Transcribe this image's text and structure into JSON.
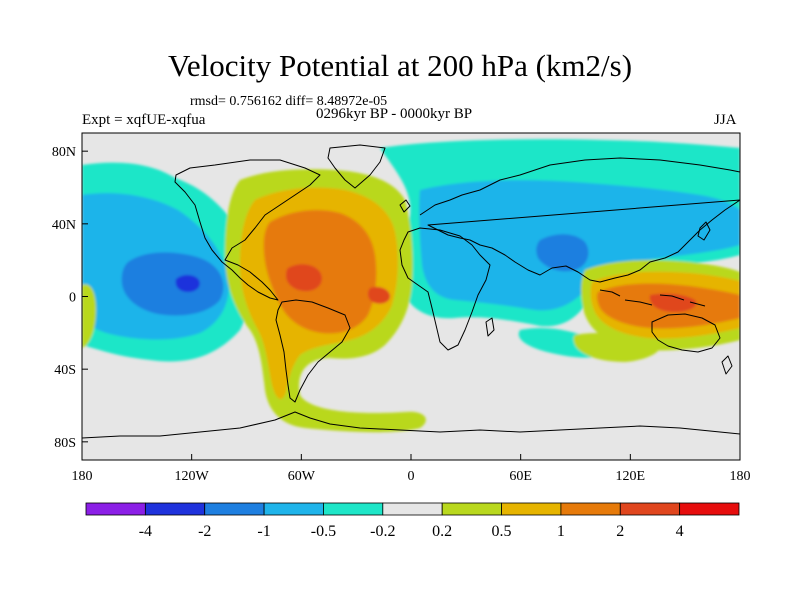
{
  "title": "Velocity Potential at 200 hPa (km2/s)",
  "rmsd_line": "rmsd= 0.756162 diff= 8.48972e-05",
  "experiment": "Expt = xqfUE-xqfua",
  "period": "0296kyr BP - 0000kyr BP",
  "season": "JJA",
  "map": {
    "projection": "cylindrical equidistant",
    "lon_range": [
      -180,
      180
    ],
    "lat_range": [
      -90,
      90
    ],
    "lon_ticks": [
      {
        "value": -180,
        "label": "180"
      },
      {
        "value": -120,
        "label": "120W"
      },
      {
        "value": -60,
        "label": "60W"
      },
      {
        "value": 0,
        "label": "0"
      },
      {
        "value": 60,
        "label": "60E"
      },
      {
        "value": 120,
        "label": "120E"
      },
      {
        "value": 180,
        "label": "180"
      }
    ],
    "lat_ticks": [
      {
        "value": 80,
        "label": "80N"
      },
      {
        "value": 40,
        "label": "40N"
      },
      {
        "value": 0,
        "label": "0"
      },
      {
        "value": -40,
        "label": "40S"
      },
      {
        "value": -80,
        "label": "80S"
      }
    ]
  },
  "colorbar": {
    "colors": [
      "#8b1fe6",
      "#1f32dc",
      "#1e7fe0",
      "#1fb4ea",
      "#1ee6c8",
      "#e6e6e6",
      "#b9d81e",
      "#e6b400",
      "#e67a0a",
      "#e0461e",
      "#e60d0d"
    ],
    "levels": [
      "-4",
      "-2",
      "-1",
      "-0.5",
      "-0.2",
      "0.2",
      "0.5",
      "1",
      "2",
      "4"
    ]
  }
}
